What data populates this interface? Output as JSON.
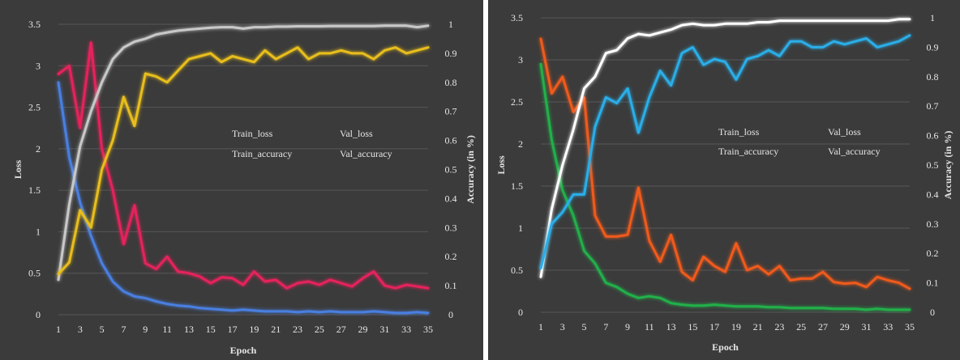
{
  "chart_data": [
    {
      "type": "line",
      "xlabel": "Epoch",
      "ylabel": "Loss",
      "y2label": "Accuracy (in %)",
      "xlim": [
        1,
        35
      ],
      "ylim": [
        0,
        3.5
      ],
      "y2lim": [
        0,
        1
      ],
      "x_ticks": [
        1,
        3,
        5,
        7,
        9,
        11,
        13,
        15,
        17,
        19,
        21,
        23,
        25,
        27,
        29,
        31,
        33,
        35
      ],
      "y_ticks": [
        "0",
        "0.5",
        "1",
        "1.5",
        "2",
        "2.5",
        "3",
        "3.5"
      ],
      "y2_ticks": [
        "0",
        "0.1",
        "0.2",
        "0.3",
        "0.4",
        "0.5",
        "0.6",
        "0.7",
        "0.8",
        "0.9",
        "1"
      ],
      "grid": true,
      "legend_position": "center",
      "colors": {
        "background": "#3b3b3b",
        "grid": "#575757"
      },
      "series": [
        {
          "name": "Train_loss",
          "axis": "left",
          "color": "#4a7fe0",
          "values": [
            2.8,
            1.9,
            1.35,
            0.95,
            0.62,
            0.4,
            0.28,
            0.22,
            0.2,
            0.16,
            0.13,
            0.11,
            0.1,
            0.08,
            0.07,
            0.06,
            0.05,
            0.06,
            0.05,
            0.04,
            0.04,
            0.04,
            0.03,
            0.04,
            0.03,
            0.04,
            0.03,
            0.03,
            0.03,
            0.04,
            0.03,
            0.02,
            0.02,
            0.03,
            0.02
          ]
        },
        {
          "name": "Val_loss",
          "axis": "left",
          "color": "#e6245c",
          "values": [
            2.9,
            3.0,
            2.25,
            3.28,
            2.0,
            1.5,
            0.85,
            1.32,
            0.62,
            0.55,
            0.7,
            0.52,
            0.5,
            0.46,
            0.38,
            0.45,
            0.44,
            0.36,
            0.52,
            0.4,
            0.42,
            0.32,
            0.38,
            0.4,
            0.36,
            0.42,
            0.38,
            0.34,
            0.44,
            0.52,
            0.35,
            0.32,
            0.36,
            0.34,
            0.32
          ]
        },
        {
          "name": "Train_accuracy",
          "axis": "right",
          "color": "#c8c8c8",
          "values": [
            0.12,
            0.38,
            0.58,
            0.7,
            0.8,
            0.88,
            0.92,
            0.94,
            0.95,
            0.965,
            0.972,
            0.978,
            0.982,
            0.985,
            0.988,
            0.99,
            0.99,
            0.985,
            0.99,
            0.99,
            0.992,
            0.992,
            0.993,
            0.993,
            0.993,
            0.994,
            0.994,
            0.994,
            0.994,
            0.994,
            0.995,
            0.995,
            0.995,
            0.99,
            0.995
          ]
        },
        {
          "name": "Val_accuracy",
          "axis": "right",
          "color": "#e8be1c",
          "values": [
            0.14,
            0.18,
            0.36,
            0.3,
            0.5,
            0.6,
            0.75,
            0.65,
            0.83,
            0.82,
            0.8,
            0.84,
            0.88,
            0.89,
            0.9,
            0.87,
            0.89,
            0.88,
            0.87,
            0.91,
            0.88,
            0.9,
            0.92,
            0.88,
            0.9,
            0.9,
            0.91,
            0.9,
            0.9,
            0.88,
            0.91,
            0.92,
            0.9,
            0.91,
            0.92
          ]
        }
      ]
    },
    {
      "type": "line",
      "xlabel": "Epoch",
      "ylabel": "Loss",
      "y2label": "Accuracy (in %)",
      "xlim": [
        1,
        35
      ],
      "ylim": [
        0,
        3.5
      ],
      "y2lim": [
        0,
        1
      ],
      "x_ticks": [
        1,
        3,
        5,
        7,
        9,
        11,
        13,
        15,
        17,
        19,
        21,
        23,
        25,
        27,
        29,
        31,
        33,
        35
      ],
      "y_ticks": [
        "0",
        "0.5",
        "1",
        "1.5",
        "2",
        "2.5",
        "3",
        "3.5"
      ],
      "y2_ticks": [
        "0",
        "0.1",
        "0.2",
        "0.3",
        "0.4",
        "0.5",
        "0.6",
        "0.7",
        "0.8",
        "0.9",
        "1"
      ],
      "grid": true,
      "legend_position": "center",
      "colors": {
        "background": "#3b3b3b",
        "grid": "#575757"
      },
      "series": [
        {
          "name": "Train_loss",
          "axis": "left",
          "color": "#20b04a",
          "values": [
            2.95,
            2.05,
            1.45,
            1.15,
            0.73,
            0.58,
            0.35,
            0.3,
            0.22,
            0.17,
            0.19,
            0.17,
            0.11,
            0.09,
            0.08,
            0.08,
            0.09,
            0.08,
            0.07,
            0.07,
            0.07,
            0.06,
            0.06,
            0.05,
            0.05,
            0.05,
            0.05,
            0.04,
            0.04,
            0.04,
            0.03,
            0.04,
            0.03,
            0.03,
            0.03
          ]
        },
        {
          "name": "Val_loss",
          "axis": "left",
          "color": "#f05a1a",
          "values": [
            3.25,
            2.6,
            2.8,
            2.38,
            2.55,
            1.15,
            0.9,
            0.9,
            0.92,
            1.48,
            0.85,
            0.6,
            0.92,
            0.48,
            0.38,
            0.66,
            0.55,
            0.48,
            0.82,
            0.5,
            0.55,
            0.45,
            0.55,
            0.38,
            0.4,
            0.4,
            0.48,
            0.36,
            0.34,
            0.35,
            0.3,
            0.42,
            0.38,
            0.35,
            0.28
          ]
        },
        {
          "name": "Train_accuracy",
          "axis": "right",
          "color": "#ffffff",
          "values": [
            0.12,
            0.35,
            0.5,
            0.62,
            0.76,
            0.8,
            0.88,
            0.89,
            0.93,
            0.945,
            0.94,
            0.95,
            0.96,
            0.975,
            0.98,
            0.975,
            0.975,
            0.98,
            0.98,
            0.98,
            0.985,
            0.985,
            0.99,
            0.99,
            0.99,
            0.99,
            0.99,
            0.99,
            0.99,
            0.99,
            0.99,
            0.99,
            0.99,
            0.995,
            0.995
          ]
        },
        {
          "name": "Val_accuracy",
          "axis": "right",
          "color": "#2aaee8",
          "values": [
            0.15,
            0.3,
            0.34,
            0.4,
            0.4,
            0.63,
            0.73,
            0.71,
            0.76,
            0.61,
            0.73,
            0.82,
            0.77,
            0.88,
            0.9,
            0.84,
            0.86,
            0.85,
            0.79,
            0.86,
            0.87,
            0.89,
            0.87,
            0.92,
            0.92,
            0.9,
            0.9,
            0.92,
            0.91,
            0.92,
            0.93,
            0.9,
            0.91,
            0.92,
            0.94
          ]
        }
      ]
    }
  ]
}
